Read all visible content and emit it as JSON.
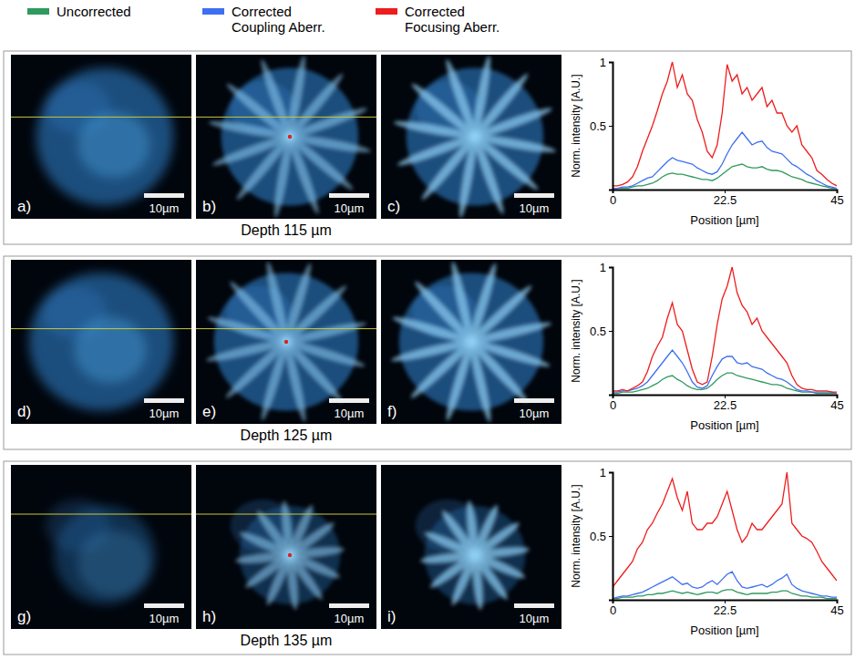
{
  "figure": {
    "scale_bar": "10µm",
    "panels": [
      {
        "caption": "Depth 115 µm",
        "images": [
          "a)",
          "b)",
          "c)"
        ]
      },
      {
        "caption": "Depth 125 µm",
        "images": [
          "d)",
          "e)",
          "f)"
        ]
      },
      {
        "caption": "Depth 135 µm",
        "images": [
          "g)",
          "h)",
          "i)"
        ]
      }
    ]
  },
  "chart_data": [
    {
      "type": "line",
      "x_label": "Position [µm]",
      "y_label": "Norm. intensity [A.U.]",
      "x": [
        0,
        1,
        2,
        3,
        4,
        5,
        6,
        7,
        8,
        9,
        10,
        11,
        12,
        13,
        14,
        15,
        16,
        17,
        18,
        19,
        20,
        21,
        22,
        23,
        24,
        25,
        26,
        27,
        28,
        29,
        30,
        31,
        32,
        33,
        34,
        35,
        36,
        37,
        38,
        39,
        40,
        41,
        42,
        43,
        44,
        45
      ],
      "xlim": [
        0,
        45
      ],
      "xticks": [
        0,
        22.5,
        45
      ],
      "ylim": [
        0,
        1
      ],
      "yticks": [
        0.5,
        1
      ],
      "series": [
        {
          "name": "Uncorrected",
          "color": "#2e9a5e",
          "values": [
            0.01,
            0.01,
            0.01,
            0.01,
            0.02,
            0.03,
            0.03,
            0.04,
            0.05,
            0.07,
            0.1,
            0.12,
            0.13,
            0.12,
            0.12,
            0.11,
            0.1,
            0.09,
            0.08,
            0.08,
            0.07,
            0.09,
            0.12,
            0.15,
            0.18,
            0.19,
            0.2,
            0.18,
            0.17,
            0.17,
            0.18,
            0.16,
            0.15,
            0.15,
            0.14,
            0.12,
            0.1,
            0.09,
            0.08,
            0.06,
            0.05,
            0.04,
            0.03,
            0.02,
            0.01,
            0.01
          ]
        },
        {
          "name": "Corrected Coupling Aberr.",
          "color": "#3d6ff0",
          "values": [
            0.01,
            0.01,
            0.02,
            0.02,
            0.03,
            0.05,
            0.07,
            0.09,
            0.1,
            0.14,
            0.18,
            0.22,
            0.25,
            0.23,
            0.22,
            0.21,
            0.2,
            0.17,
            0.15,
            0.13,
            0.12,
            0.14,
            0.2,
            0.28,
            0.35,
            0.4,
            0.45,
            0.4,
            0.35,
            0.37,
            0.38,
            0.33,
            0.3,
            0.29,
            0.28,
            0.24,
            0.2,
            0.18,
            0.15,
            0.12,
            0.1,
            0.07,
            0.05,
            0.03,
            0.02,
            0.01
          ]
        },
        {
          "name": "Corrected Focusing Aberr.",
          "color": "#ee1c1c",
          "values": [
            0.03,
            0.03,
            0.04,
            0.06,
            0.1,
            0.18,
            0.3,
            0.4,
            0.5,
            0.62,
            0.75,
            0.85,
            1.0,
            0.8,
            0.9,
            0.75,
            0.7,
            0.55,
            0.45,
            0.3,
            0.25,
            0.35,
            0.6,
            0.98,
            0.85,
            0.9,
            0.75,
            0.8,
            0.7,
            0.75,
            0.8,
            0.65,
            0.7,
            0.6,
            0.6,
            0.5,
            0.45,
            0.5,
            0.35,
            0.3,
            0.25,
            0.15,
            0.12,
            0.08,
            0.05,
            0.03
          ]
        }
      ]
    },
    {
      "type": "line",
      "x_label": "Position [µm]",
      "y_label": "Norm. intensity [A.U.]",
      "x": [
        0,
        1,
        2,
        3,
        4,
        5,
        6,
        7,
        8,
        9,
        10,
        11,
        12,
        13,
        14,
        15,
        16,
        17,
        18,
        19,
        20,
        21,
        22,
        23,
        24,
        25,
        26,
        27,
        28,
        29,
        30,
        31,
        32,
        33,
        34,
        35,
        36,
        37,
        38,
        39,
        40,
        41,
        42,
        43,
        44,
        45
      ],
      "xlim": [
        0,
        45
      ],
      "xticks": [
        0,
        22.5,
        45
      ],
      "ylim": [
        0,
        1
      ],
      "yticks": [
        0.5,
        1
      ],
      "series": [
        {
          "color": "#2e9a5e",
          "values": [
            0.01,
            0.01,
            0.02,
            0.02,
            0.02,
            0.03,
            0.04,
            0.05,
            0.07,
            0.09,
            0.12,
            0.14,
            0.15,
            0.12,
            0.1,
            0.07,
            0.05,
            0.04,
            0.04,
            0.05,
            0.08,
            0.12,
            0.15,
            0.17,
            0.17,
            0.15,
            0.14,
            0.13,
            0.12,
            0.11,
            0.1,
            0.09,
            0.08,
            0.08,
            0.07,
            0.05,
            0.04,
            0.03,
            0.02,
            0.02,
            0.02,
            0.01,
            0.01,
            0.01,
            0.01,
            0.01
          ]
        },
        {
          "color": "#3d6ff0",
          "values": [
            0.02,
            0.02,
            0.03,
            0.03,
            0.04,
            0.05,
            0.07,
            0.1,
            0.15,
            0.2,
            0.25,
            0.3,
            0.35,
            0.3,
            0.25,
            0.18,
            0.1,
            0.06,
            0.05,
            0.07,
            0.15,
            0.22,
            0.28,
            0.3,
            0.3,
            0.25,
            0.24,
            0.25,
            0.22,
            0.21,
            0.2,
            0.17,
            0.15,
            0.13,
            0.12,
            0.1,
            0.07,
            0.04,
            0.03,
            0.03,
            0.02,
            0.02,
            0.02,
            0.02,
            0.02,
            0.01
          ]
        },
        {
          "color": "#ee1c1c",
          "values": [
            0.03,
            0.03,
            0.04,
            0.03,
            0.05,
            0.07,
            0.1,
            0.18,
            0.3,
            0.38,
            0.45,
            0.6,
            0.72,
            0.55,
            0.5,
            0.35,
            0.2,
            0.1,
            0.08,
            0.1,
            0.3,
            0.55,
            0.75,
            0.85,
            1.0,
            0.8,
            0.7,
            0.65,
            0.55,
            0.6,
            0.5,
            0.45,
            0.4,
            0.35,
            0.3,
            0.25,
            0.15,
            0.08,
            0.05,
            0.04,
            0.04,
            0.03,
            0.03,
            0.03,
            0.02,
            0.02
          ]
        }
      ]
    },
    {
      "type": "line",
      "x_label": "Position [µm]",
      "y_label": "Norm. intensity [A.U.]",
      "x": [
        0,
        1,
        2,
        3,
        4,
        5,
        6,
        7,
        8,
        9,
        10,
        11,
        12,
        13,
        14,
        15,
        16,
        17,
        18,
        19,
        20,
        21,
        22,
        23,
        24,
        25,
        26,
        27,
        28,
        29,
        30,
        31,
        32,
        33,
        34,
        35,
        36,
        37,
        38,
        39,
        40,
        41,
        42,
        43,
        44,
        45
      ],
      "xlim": [
        0,
        45
      ],
      "xticks": [
        0,
        22.5,
        45
      ],
      "ylim": [
        0,
        1
      ],
      "yticks": [
        0.5,
        1
      ],
      "series": [
        {
          "color": "#2e9a5e",
          "values": [
            0.01,
            0.01,
            0.02,
            0.02,
            0.02,
            0.03,
            0.03,
            0.04,
            0.04,
            0.05,
            0.05,
            0.06,
            0.07,
            0.06,
            0.05,
            0.06,
            0.05,
            0.04,
            0.05,
            0.06,
            0.06,
            0.05,
            0.07,
            0.08,
            0.08,
            0.06,
            0.05,
            0.04,
            0.05,
            0.05,
            0.05,
            0.05,
            0.06,
            0.06,
            0.07,
            0.07,
            0.05,
            0.04,
            0.03,
            0.03,
            0.02,
            0.02,
            0.02,
            0.01,
            0.01,
            0.01
          ]
        },
        {
          "color": "#3d6ff0",
          "values": [
            0.01,
            0.02,
            0.03,
            0.03,
            0.04,
            0.05,
            0.06,
            0.08,
            0.1,
            0.12,
            0.14,
            0.16,
            0.18,
            0.15,
            0.12,
            0.13,
            0.1,
            0.09,
            0.1,
            0.13,
            0.15,
            0.12,
            0.16,
            0.2,
            0.22,
            0.15,
            0.1,
            0.09,
            0.1,
            0.11,
            0.12,
            0.1,
            0.12,
            0.15,
            0.17,
            0.2,
            0.12,
            0.09,
            0.07,
            0.06,
            0.05,
            0.04,
            0.03,
            0.03,
            0.02,
            0.02
          ]
        },
        {
          "color": "#ee1c1c",
          "values": [
            0.1,
            0.15,
            0.2,
            0.25,
            0.3,
            0.4,
            0.45,
            0.55,
            0.6,
            0.68,
            0.75,
            0.85,
            0.95,
            0.8,
            0.7,
            0.85,
            0.6,
            0.55,
            0.55,
            0.6,
            0.6,
            0.65,
            0.75,
            0.85,
            0.7,
            0.55,
            0.45,
            0.5,
            0.6,
            0.55,
            0.55,
            0.6,
            0.65,
            0.7,
            0.75,
            1.0,
            0.6,
            0.55,
            0.5,
            0.48,
            0.45,
            0.38,
            0.3,
            0.25,
            0.2,
            0.15
          ]
        }
      ]
    }
  ]
}
